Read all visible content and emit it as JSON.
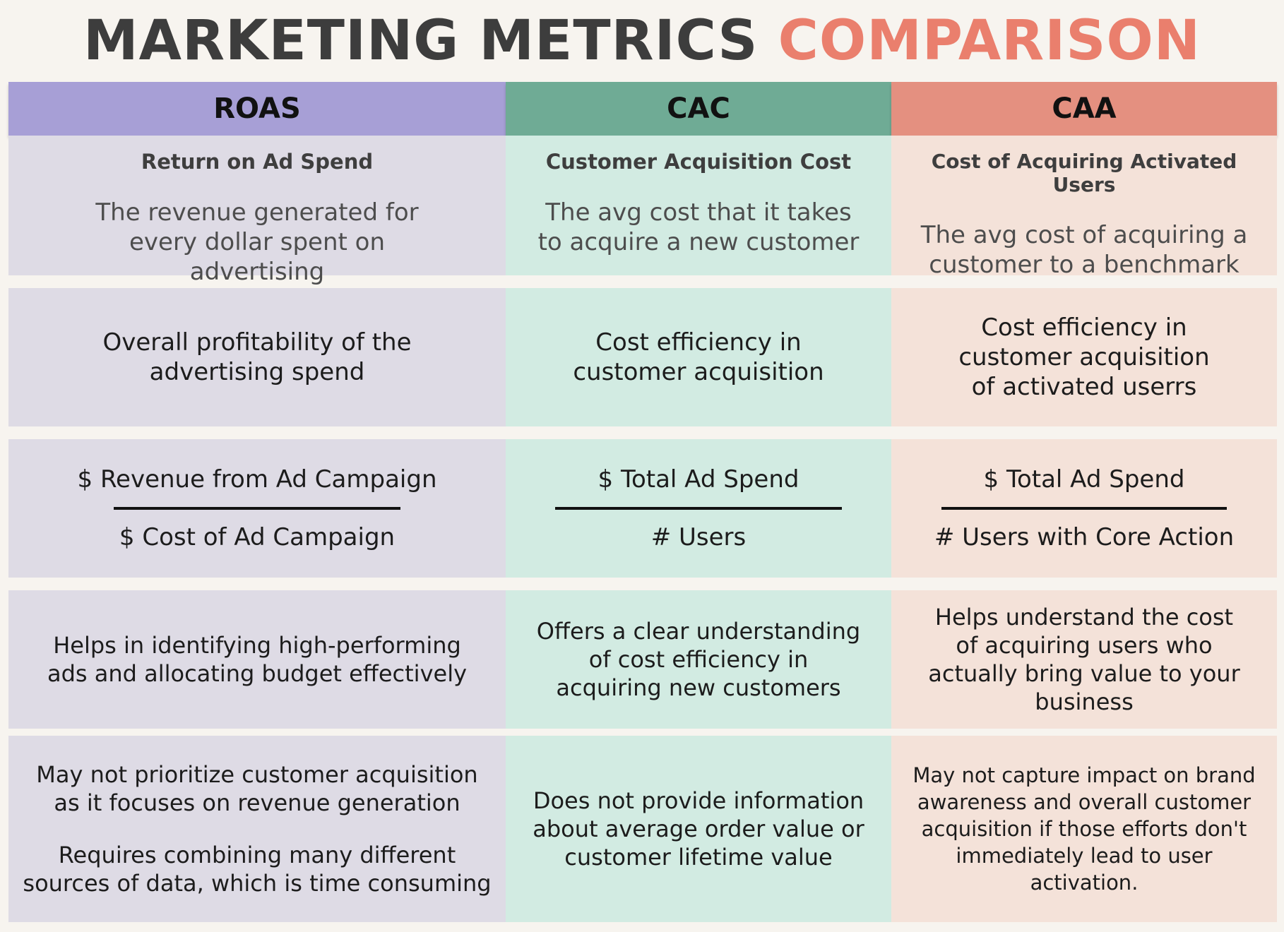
{
  "title": {
    "part1": "MARKETING METRICS",
    "part2": "COMPARISON"
  },
  "columns": [
    {
      "header": "ROAS",
      "full_name": "Return on Ad Spend",
      "definition": "The revenue generated for every dollar spent on advertising",
      "measures": "Overall profitability of the advertising spend",
      "formula": {
        "numerator": "$ Revenue from Ad Campaign",
        "denominator": "$ Cost of Ad Campaign"
      },
      "benefit": "Helps in identifying high-performing ads and allocating budget effectively",
      "limitations": [
        "May not prioritize customer acquisition as it focuses on revenue generation",
        "Requires combining many different sources of data, which is time consuming"
      ]
    },
    {
      "header": "CAC",
      "full_name": "Customer Acquisition Cost",
      "definition": "The avg cost that it takes to acquire a new customer",
      "measures": "Cost efficiency in customer acquisition",
      "formula": {
        "numerator": "$ Total Ad Spend",
        "denominator": "# Users"
      },
      "benefit": "Offers a clear understanding of cost efficiency in acquiring new customers",
      "limitations": [
        "Does not provide information about average order value or customer lifetime value"
      ]
    },
    {
      "header": "CAA",
      "full_name": "Cost of Acquiring Activated Users",
      "definition": "The avg cost of acquiring a customer to a benchmark",
      "measures": "Cost efficiency in customer acquisition of activated  userrs",
      "formula": {
        "numerator": "$ Total Ad Spend",
        "denominator": "# Users with Core Action"
      },
      "benefit": "Helps understand the cost of acquiring users who actually bring value to your business",
      "limitations": [
        "May not capture impact on brand awareness and overall customer acquisition if those efforts don't immediately lead to user activation."
      ]
    }
  ],
  "colors": {
    "title_dark": "#3d3d3d",
    "title_accent": "#ea7f6d",
    "roas_header": "#a79fd6",
    "cac_header": "#6fab95",
    "caa_header": "#e49080",
    "roas_cell": "#dedbe5",
    "cac_cell": "#d2ebe2",
    "caa_cell": "#f4e2d9"
  }
}
